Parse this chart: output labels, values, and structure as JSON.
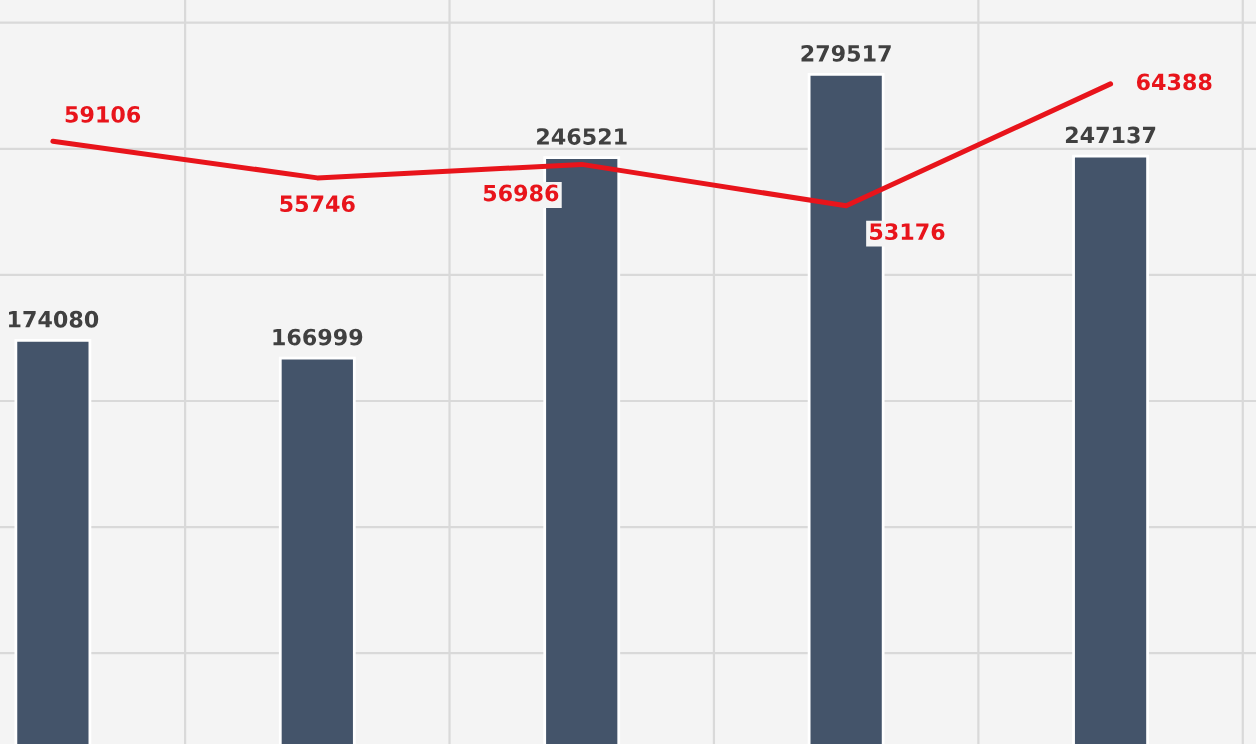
{
  "chart_data": [
    {
      "type": "bar",
      "categories": [
        null,
        null,
        null,
        null,
        null
      ],
      "color": "#44546a",
      "values": [
        174080,
        166999,
        246521,
        279517,
        247137
      ],
      "ylim": [
        14000,
        309000
      ],
      "yticks": [
        {
          "value": 50000,
          "label": null
        },
        {
          "value": 100000,
          "label": null
        },
        {
          "value": 150000,
          "label": null
        },
        {
          "value": 200000,
          "label": null
        },
        {
          "value": 250000,
          "label": null
        },
        {
          "value": 300000,
          "label": null
        }
      ],
      "grid": true,
      "data_labels": true
    },
    {
      "type": "line",
      "categories": [
        null,
        null,
        null,
        null,
        null
      ],
      "color": "#e8141b",
      "values": [
        59106,
        55746,
        56986,
        53176,
        64388
      ],
      "ylim": [
        3700,
        72100
      ],
      "data_labels": true,
      "marker": "none",
      "line_style": "solid"
    }
  ]
}
